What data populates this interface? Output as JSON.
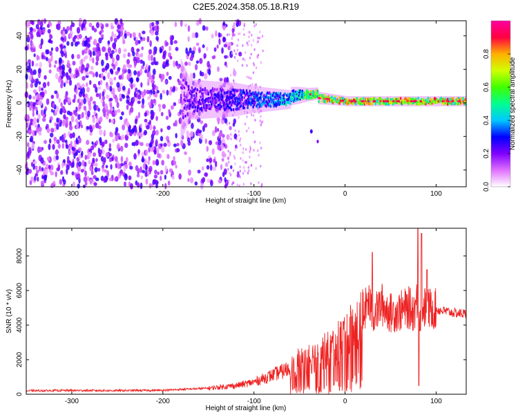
{
  "title": "C2E5.2024.358.05.18.R19",
  "chart_data": [
    {
      "type": "heatmap",
      "xlabel": "Height of straight line (km)",
      "ylabel": "Frequency (Hz)",
      "xlim": [
        -350,
        133
      ],
      "ylim": [
        -50,
        49
      ],
      "xticks": [
        -300,
        -200,
        -100,
        0,
        100
      ],
      "yticks": [
        -40,
        -20,
        0,
        20,
        40
      ],
      "colorbar": {
        "label": "Normalized spectral amplitude",
        "range": [
          0.0,
          1.0
        ],
        "ticks": [
          0.0,
          0.2,
          0.4,
          0.6,
          0.8
        ],
        "colors": [
          "#ffffff",
          "#e070ff",
          "#8000ff",
          "#0000ff",
          "#00c8ff",
          "#00ff90",
          "#40ff00",
          "#d0ff00",
          "#ffb000",
          "#ff0040",
          "#ff00a0"
        ]
      },
      "description_points": [
        {
          "x": -300,
          "freq_spread": 49,
          "amplitude": 0.08
        },
        {
          "x": -200,
          "freq_spread": 49,
          "amplitude": 0.08
        },
        {
          "x": -170,
          "freq_spread": 12,
          "amplitude": 0.25
        },
        {
          "x": -120,
          "freq_spread": 10,
          "amplitude": 0.3
        },
        {
          "x": -100,
          "freq_spread": 8,
          "amplitude": 0.35
        },
        {
          "x": -50,
          "freq_spread": 5,
          "amplitude": 0.5
        },
        {
          "x": -40,
          "freq_spread": 4,
          "amplitude": 0.7
        },
        {
          "x": 0,
          "freq_spread": 3,
          "amplitude": 0.85
        },
        {
          "x": 50,
          "freq_spread": 3,
          "amplitude": 0.8
        },
        {
          "x": 100,
          "freq_spread": 3,
          "amplitude": 0.85
        },
        {
          "x": 130,
          "freq_spread": 3,
          "amplitude": 0.8
        }
      ]
    },
    {
      "type": "line",
      "xlabel": "Height of straight line (km)",
      "ylabel": "SNR (10 * v/v)",
      "xlim": [
        -350,
        133
      ],
      "ylim": [
        0,
        9600
      ],
      "xticks": [
        -300,
        -200,
        -100,
        0,
        100
      ],
      "yticks": [
        0,
        2000,
        4000,
        6000,
        8000
      ],
      "color": "#ee2222",
      "x": [
        -350,
        -300,
        -250,
        -200,
        -150,
        -120,
        -100,
        -80,
        -60,
        -50,
        -40,
        -30,
        -20,
        -10,
        0,
        10,
        20,
        25,
        30,
        35,
        40,
        50,
        60,
        70,
        75,
        80,
        82,
        85,
        90,
        95,
        100,
        110,
        120,
        133
      ],
      "values": [
        200,
        220,
        210,
        230,
        350,
        500,
        700,
        1100,
        1500,
        1900,
        2000,
        2300,
        2500,
        2900,
        3400,
        3900,
        4300,
        5500,
        4600,
        4800,
        5200,
        4700,
        4800,
        5000,
        4800,
        5500,
        4600,
        5100,
        4900,
        5000,
        4900,
        4800,
        4700,
        4650
      ],
      "peaks": [
        {
          "x": 30,
          "value": 8200
        },
        {
          "x": 80,
          "value": 9600
        },
        {
          "x": 84,
          "value": 9300
        },
        {
          "x": 90,
          "value": 7200
        },
        {
          "x": 81,
          "value": 500
        }
      ]
    }
  ]
}
